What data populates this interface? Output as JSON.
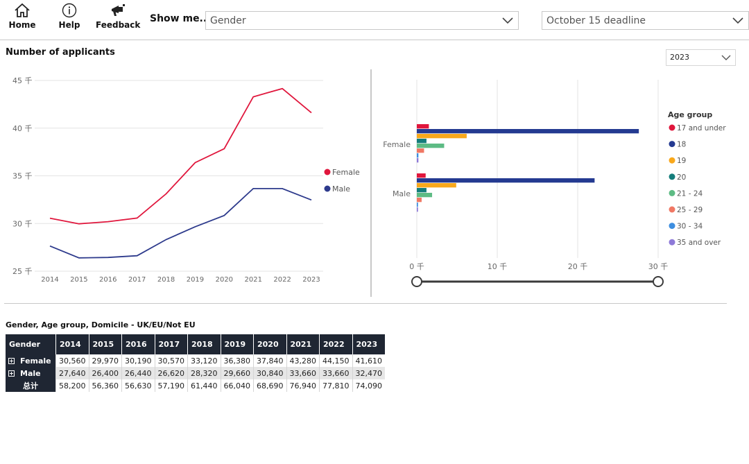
{
  "toolbar": {
    "home_label": "Home",
    "help_label": "Help",
    "feedback_label": "Feedback",
    "show_me_label": "Show me...",
    "measure_dropdown": "Gender",
    "deadline_dropdown": "October 15 deadline"
  },
  "main": {
    "title": "Number of applicants",
    "year_filter": "2023"
  },
  "colors": {
    "female": "#e0163c",
    "male": "#2d3a8c",
    "header_bg": "#1f2633"
  },
  "chart_data": [
    {
      "type": "line",
      "title": "",
      "x": [
        "2014",
        "2015",
        "2016",
        "2017",
        "2018",
        "2019",
        "2020",
        "2021",
        "2022",
        "2023"
      ],
      "ylim": [
        25,
        45
      ],
      "yticks": [
        25,
        30,
        35,
        40,
        45
      ],
      "ytick_suffix": " 千",
      "grid": true,
      "legend": "right",
      "series": [
        {
          "name": "Female",
          "color": "#e0163c",
          "values": [
            30.56,
            29.97,
            30.19,
            30.57,
            33.12,
            36.38,
            37.84,
            43.28,
            44.15,
            41.61
          ]
        },
        {
          "name": "Male",
          "color": "#2d3a8c",
          "values": [
            27.64,
            26.4,
            26.44,
            26.62,
            28.32,
            29.66,
            30.84,
            33.66,
            33.66,
            32.47
          ]
        }
      ]
    },
    {
      "type": "bar",
      "orientation": "horizontal",
      "categories": [
        "Female",
        "Male"
      ],
      "xlim": [
        0,
        30
      ],
      "xticks": [
        0,
        10,
        20,
        30
      ],
      "xtick_suffix": " 千",
      "legend_title": "Age group",
      "legend": "right",
      "series": [
        {
          "name": "17 and under",
          "color": "#e0163c",
          "values": [
            1.5,
            1.1
          ]
        },
        {
          "name": "18",
          "color": "#243a91",
          "values": [
            27.6,
            22.1
          ]
        },
        {
          "name": "19",
          "color": "#f9a81b",
          "values": [
            6.2,
            4.9
          ]
        },
        {
          "name": "20",
          "color": "#147d7b",
          "values": [
            1.2,
            1.2
          ]
        },
        {
          "name": "21 - 24",
          "color": "#5dbb84",
          "values": [
            3.4,
            1.9
          ]
        },
        {
          "name": "25 - 29",
          "color": "#f07864",
          "values": [
            0.9,
            0.6
          ]
        },
        {
          "name": "30 - 34",
          "color": "#3d8ee0",
          "values": [
            0.2,
            0.15
          ]
        },
        {
          "name": "35 and over",
          "color": "#8e7ad8",
          "values": [
            0.2,
            0.15
          ]
        }
      ]
    }
  ],
  "table": {
    "title": "Gender, Age group, Domicile - UK/EU/Not EU",
    "headers": [
      "Gender",
      "2014",
      "2015",
      "2016",
      "2017",
      "2018",
      "2019",
      "2020",
      "2021",
      "2022",
      "2023"
    ],
    "rows": [
      {
        "label": "Female",
        "values": [
          "30,560",
          "29,970",
          "30,190",
          "30,570",
          "33,120",
          "36,380",
          "37,840",
          "43,280",
          "44,150",
          "41,610"
        ]
      },
      {
        "label": "Male",
        "values": [
          "27,640",
          "26,400",
          "26,440",
          "26,620",
          "28,320",
          "29,660",
          "30,840",
          "33,660",
          "33,660",
          "32,470"
        ]
      }
    ],
    "total": {
      "label": "总计",
      "values": [
        "58,200",
        "56,360",
        "56,630",
        "57,190",
        "61,440",
        "66,040",
        "68,690",
        "76,940",
        "77,810",
        "74,090"
      ]
    }
  }
}
